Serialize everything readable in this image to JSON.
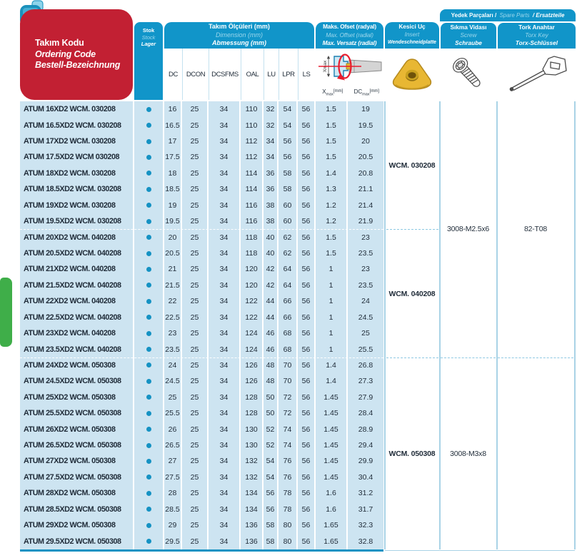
{
  "colors": {
    "header_blue": "#1195c9",
    "brand_red": "#c22033",
    "row_blue": "#cde4f1",
    "text_dark": "#1f2b38",
    "divider_blue": "#a9d3e6",
    "green_tab": "#3fae49",
    "stock_dot": "#1592c3",
    "insert_gold": "#e8b733"
  },
  "ordering_code_header": {
    "tr": "Takım Kodu",
    "en": "Ordering Code",
    "de": "Bestell-Bezeichnung"
  },
  "stock_header": {
    "tr": "Stok",
    "en": "Stock",
    "de": "Lager"
  },
  "dimensions_header": {
    "tr": "Takım Ölçüleri (mm)",
    "en": "Dimension (mm)",
    "de": "Abmessung (mm)"
  },
  "dimension_columns": [
    "DC",
    "DCON",
    "DCSFMS",
    "OAL",
    "LU",
    "LPR",
    "LS"
  ],
  "offset_header": {
    "tr": "Maks. Ofset (radyal)",
    "en": "Max. Offset (radial)",
    "de": "Max. Versatz (radial)"
  },
  "offset_columns": {
    "xmax": {
      "base": "X",
      "sub": "max",
      "unit": "[mm]"
    },
    "dcmax": {
      "base": "DC",
      "sub": "max",
      "unit": "[mm]"
    }
  },
  "diagram": {
    "xmax_label": "Xmax"
  },
  "insert_header": {
    "tr": "Kesici Uç",
    "en": "Insert",
    "de": "Wendeschneidplatte"
  },
  "spare_parts_header": {
    "tr": "Yedek Parçaları /",
    "en": "Spare Parts",
    "de": "/ Ersatzteile"
  },
  "screw_header": {
    "tr": "Sıkma Vidası",
    "en": "Screw",
    "de": "Schraube"
  },
  "torx_header": {
    "tr": "Tork Anahtar",
    "en": "Torx Key",
    "de": "Torx-Schlüssel"
  },
  "groups": [
    {
      "insert_code": "WCM. 030208",
      "rows": [
        {
          "code": "ATUM 16XD2 WCM. 030208",
          "stock": true,
          "values": [
            "16",
            "25",
            "34",
            "110",
            "32",
            "54",
            "56",
            "1.5",
            "19"
          ]
        },
        {
          "code": "ATUM 16.5XD2 WCM. 030208",
          "stock": true,
          "values": [
            "16.5",
            "25",
            "34",
            "110",
            "32",
            "54",
            "56",
            "1.5",
            "19.5"
          ]
        },
        {
          "code": "ATUM 17XD2 WCM. 030208",
          "stock": true,
          "values": [
            "17",
            "25",
            "34",
            "112",
            "34",
            "56",
            "56",
            "1.5",
            "20"
          ]
        },
        {
          "code": "ATUM 17.5XD2 WCM 030208",
          "stock": true,
          "values": [
            "17.5",
            "25",
            "34",
            "112",
            "34",
            "56",
            "56",
            "1.5",
            "20.5"
          ]
        },
        {
          "code": "ATUM 18XD2 WCM. 030208",
          "stock": true,
          "values": [
            "18",
            "25",
            "34",
            "114",
            "36",
            "58",
            "56",
            "1.4",
            "20.8"
          ]
        },
        {
          "code": "ATUM 18.5XD2 WCM. 030208",
          "stock": true,
          "values": [
            "18.5",
            "25",
            "34",
            "114",
            "36",
            "58",
            "56",
            "1.3",
            "21.1"
          ]
        },
        {
          "code": "ATUM 19XD2 WCM. 030208",
          "stock": true,
          "values": [
            "19",
            "25",
            "34",
            "116",
            "38",
            "60",
            "56",
            "1.2",
            "21.4"
          ]
        },
        {
          "code": "ATUM 19.5XD2 WCM. 030208",
          "stock": true,
          "values": [
            "19.5",
            "25",
            "34",
            "116",
            "38",
            "60",
            "56",
            "1.2",
            "21.9"
          ]
        }
      ]
    },
    {
      "insert_code": "WCM. 040208",
      "rows": [
        {
          "code": "ATUM 20XD2 WCM. 040208",
          "stock": true,
          "values": [
            "20",
            "25",
            "34",
            "118",
            "40",
            "62",
            "56",
            "1.5",
            "23"
          ]
        },
        {
          "code": "ATUM 20.5XD2 WCM. 040208",
          "stock": true,
          "values": [
            "20.5",
            "25",
            "34",
            "118",
            "40",
            "62",
            "56",
            "1.5",
            "23.5"
          ]
        },
        {
          "code": "ATUM 21XD2 WCM. 040208",
          "stock": true,
          "values": [
            "21",
            "25",
            "34",
            "120",
            "42",
            "64",
            "56",
            "1",
            "23"
          ]
        },
        {
          "code": "ATUM 21.5XD2 WCM. 040208",
          "stock": true,
          "values": [
            "21.5",
            "25",
            "34",
            "120",
            "42",
            "64",
            "56",
            "1",
            "23.5"
          ]
        },
        {
          "code": "ATUM 22XD2 WCM. 040208",
          "stock": true,
          "values": [
            "22",
            "25",
            "34",
            "122",
            "44",
            "66",
            "56",
            "1",
            "24"
          ]
        },
        {
          "code": "ATUM 22.5XD2 WCM. 040208",
          "stock": true,
          "values": [
            "22.5",
            "25",
            "34",
            "122",
            "44",
            "66",
            "56",
            "1",
            "24.5"
          ]
        },
        {
          "code": "ATUM 23XD2 WCM. 040208",
          "stock": true,
          "values": [
            "23",
            "25",
            "34",
            "124",
            "46",
            "68",
            "56",
            "1",
            "25"
          ]
        },
        {
          "code": "ATUM 23.5XD2 WCM. 040208",
          "stock": true,
          "values": [
            "23.5",
            "25",
            "34",
            "124",
            "46",
            "68",
            "56",
            "1",
            "25.5"
          ]
        }
      ]
    },
    {
      "insert_code": "WCM. 050308",
      "rows": [
        {
          "code": "ATUM 24XD2 WCM. 050308",
          "stock": true,
          "values": [
            "24",
            "25",
            "34",
            "126",
            "48",
            "70",
            "56",
            "1.4",
            "26.8"
          ]
        },
        {
          "code": "ATUM 24.5XD2 WCM. 050308",
          "stock": true,
          "values": [
            "24.5",
            "25",
            "34",
            "126",
            "48",
            "70",
            "56",
            "1.4",
            "27.3"
          ]
        },
        {
          "code": "ATUM 25XD2 WCM. 050308",
          "stock": true,
          "values": [
            "25",
            "25",
            "34",
            "128",
            "50",
            "72",
            "56",
            "1.45",
            "27.9"
          ]
        },
        {
          "code": "ATUM 25.5XD2 WCM. 050308",
          "stock": true,
          "values": [
            "25.5",
            "25",
            "34",
            "128",
            "50",
            "72",
            "56",
            "1.45",
            "28.4"
          ]
        },
        {
          "code": "ATUM 26XD2 WCM. 050308",
          "stock": true,
          "values": [
            "26",
            "25",
            "34",
            "130",
            "52",
            "74",
            "56",
            "1.45",
            "28.9"
          ]
        },
        {
          "code": "ATUM 26.5XD2 WCM. 050308",
          "stock": true,
          "values": [
            "26.5",
            "25",
            "34",
            "130",
            "52",
            "74",
            "56",
            "1.45",
            "29.4"
          ]
        },
        {
          "code": "ATUM 27XD2 WCM. 050308",
          "stock": true,
          "values": [
            "27",
            "25",
            "34",
            "132",
            "54",
            "76",
            "56",
            "1.45",
            "29.9"
          ]
        },
        {
          "code": "ATUM 27.5XD2 WCM. 050308",
          "stock": true,
          "values": [
            "27.5",
            "25",
            "34",
            "132",
            "54",
            "76",
            "56",
            "1.45",
            "30.4"
          ]
        },
        {
          "code": "ATUM 28XD2 WCM. 050308",
          "stock": true,
          "values": [
            "28",
            "25",
            "34",
            "134",
            "56",
            "78",
            "56",
            "1.6",
            "31.2"
          ]
        },
        {
          "code": "ATUM 28.5XD2 WCM. 050308",
          "stock": true,
          "values": [
            "28.5",
            "25",
            "34",
            "134",
            "56",
            "78",
            "56",
            "1.6",
            "31.7"
          ]
        },
        {
          "code": "ATUM 29XD2 WCM. 050308",
          "stock": true,
          "values": [
            "29",
            "25",
            "34",
            "136",
            "58",
            "80",
            "56",
            "1.65",
            "32.3"
          ]
        },
        {
          "code": "ATUM 29.5XD2 WCM. 050308",
          "stock": true,
          "values": [
            "29.5",
            "25",
            "34",
            "136",
            "58",
            "80",
            "56",
            "1.65",
            "32.8"
          ]
        }
      ]
    }
  ],
  "spares": [
    {
      "screw": "3008-M2.5x6",
      "torx": "82-T08"
    },
    {
      "screw": "3008-M3x8",
      "torx": ""
    }
  ]
}
